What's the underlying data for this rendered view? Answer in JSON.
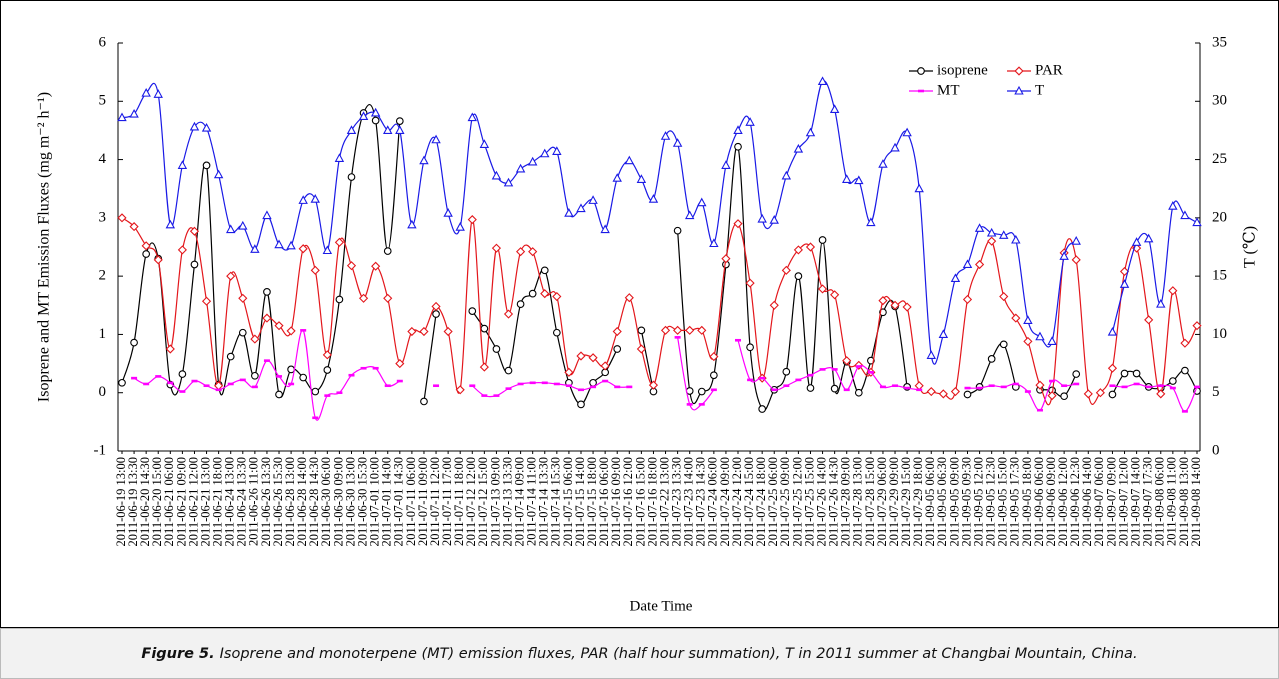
{
  "chart_data": {
    "type": "line",
    "x_label": "Date Time",
    "y_label": "Isoprene and MT Emission Fluxes (mg m⁻² h⁻¹)",
    "y2_label": "T (℃)",
    "ylim": [
      -1,
      6
    ],
    "yticks": [
      -1,
      0,
      1,
      2,
      3,
      4,
      5,
      6
    ],
    "y2lim": [
      0,
      35
    ],
    "y2ticks": [
      0,
      5,
      10,
      15,
      20,
      25,
      30,
      35
    ],
    "legend": "upper right",
    "categories": [
      "2011-06-19 13:00",
      "2011-06-19 13:30",
      "2011-06-20 14:30",
      "2011-06-20 15:00",
      "2011-06-21 06:00",
      "2011-06-21 09:00",
      "2011-06-21 12:00",
      "2011-06-21 13:00",
      "2011-06-21 18:00",
      "2011-06-24 13:00",
      "2011-06-24 13:30",
      "2011-06-26 11:00",
      "2011-06-26 13:30",
      "2011-06-26 15:30",
      "2011-06-28 13:00",
      "2011-06-28 14:00",
      "2011-06-28 14:30",
      "2011-06-30 06:00",
      "2011-06-30 09:00",
      "2011-06-30 13:00",
      "2011-06-30 15:30",
      "2011-07-01 10:00",
      "2011-07-01 14:00",
      "2011-07-01 14:30",
      "2011-07-11 06:00",
      "2011-07-11 09:00",
      "2011-07-11 12:00",
      "2011-07-11 17:00",
      "2011-07-11 18:00",
      "2011-07-12 12:00",
      "2011-07-12 15:00",
      "2011-07-13 09:00",
      "2011-07-13 13:30",
      "2011-07-14 09:00",
      "2011-07-14 11:00",
      "2011-07-14 13:30",
      "2011-07-14 15:30",
      "2011-07-15 06:00",
      "2011-07-15 14:00",
      "2011-07-15 18:00",
      "2011-07-16 06:00",
      "2011-07-16 09:00",
      "2011-07-16 12:00",
      "2011-07-16 15:00",
      "2011-07-16 18:00",
      "2011-07-22 13:00",
      "2011-07-23 13:30",
      "2011-07-23 14:00",
      "2011-07-23 14:30",
      "2011-07-24 06:00",
      "2011-07-24 09:00",
      "2011-07-24 12:00",
      "2011-07-24 15:00",
      "2011-07-24 18:00",
      "2011-07-25 06:00",
      "2011-07-25 09:00",
      "2011-07-25 12:00",
      "2011-07-25 15:00",
      "2011-07-26 14:00",
      "2011-07-26 14:30",
      "2011-07-28 09:00",
      "2011-07-28 13:00",
      "2011-07-28 15:00",
      "2011-07-29 06:00",
      "2011-07-29 09:00",
      "2011-07-29 15:00",
      "2011-07-29 18:00",
      "2011-09-05 06:00",
      "2011-09-05 06:30",
      "2011-09-05 09:00",
      "2011-09-05 09:30",
      "2011-09-05 12:00",
      "2011-09-05 12:30",
      "2011-09-05 15:00",
      "2011-09-05 17:30",
      "2011-09-05 18:00",
      "2011-09-06 06:00",
      "2011-09-06 09:00",
      "2011-09-06 12:00",
      "2011-09-06 12:30",
      "2011-09-06 14:00",
      "2011-09-07 06:00",
      "2011-09-07 09:00",
      "2011-09-07 12:00",
      "2011-09-07 14:00",
      "2011-09-07 17:30",
      "2011-09-08 06:00",
      "2011-09-08 11:00",
      "2011-09-08 13:00",
      "2011-09-08 14:00"
    ],
    "series": [
      {
        "name": "isoprene",
        "color": "#000000",
        "marker": "circle",
        "values": [
          0.17,
          0.86,
          2.38,
          2.3,
          0.14,
          0.32,
          2.2,
          3.9,
          0.14,
          0.62,
          1.03,
          0.29,
          1.73,
          -0.03,
          0.4,
          0.26,
          0.02,
          0.39,
          1.6,
          3.7,
          4.8,
          4.67,
          2.43,
          4.66,
          null,
          -0.15,
          1.35,
          null,
          null,
          1.4,
          1.1,
          0.75,
          0.38,
          1.52,
          1.7,
          2.1,
          1.03,
          0.17,
          -0.2,
          0.17,
          0.35,
          0.75,
          null,
          1.07,
          0.02,
          null,
          2.78,
          0.03,
          0.02,
          0.3,
          2.2,
          4.22,
          0.78,
          -0.28,
          0.05,
          0.36,
          2.0,
          0.08,
          2.62,
          0.07,
          0.53,
          0.0,
          0.55,
          1.38,
          1.48,
          0.1,
          null,
          null,
          null,
          null,
          -0.03,
          0.1,
          0.58,
          0.83,
          0.1,
          null,
          0.05,
          0.04,
          -0.06,
          0.32,
          null,
          null,
          -0.03,
          0.33,
          0.33,
          0.1,
          0.08,
          0.2,
          0.38,
          0.03
        ]
      },
      {
        "name": "PAR",
        "color": "#e3171c",
        "marker": "diamond",
        "values": [
          3.0,
          2.85,
          2.52,
          2.28,
          0.75,
          2.45,
          2.77,
          1.57,
          0.12,
          2.0,
          1.62,
          0.92,
          1.28,
          1.15,
          1.06,
          2.47,
          2.1,
          0.65,
          2.58,
          2.18,
          1.62,
          2.17,
          1.62,
          0.5,
          1.05,
          1.05,
          1.48,
          1.05,
          0.05,
          2.97,
          0.44,
          2.48,
          1.35,
          2.42,
          2.42,
          1.7,
          1.65,
          0.35,
          0.63,
          0.6,
          0.46,
          1.05,
          1.63,
          0.75,
          0.13,
          1.07,
          1.07,
          1.07,
          1.07,
          0.62,
          2.3,
          2.9,
          1.88,
          0.25,
          1.5,
          2.1,
          2.45,
          2.5,
          1.78,
          1.68,
          0.55,
          0.47,
          0.35,
          1.58,
          1.5,
          1.47,
          0.12,
          0.02,
          -0.02,
          0.02,
          1.6,
          2.2,
          2.6,
          1.65,
          1.28,
          0.88,
          0.13,
          -0.05,
          2.4,
          2.28,
          -0.02,
          0.0,
          0.42,
          2.08,
          2.48,
          1.25,
          -0.02,
          1.75,
          0.85,
          1.15
        ]
      },
      {
        "name": "MT",
        "color": "#ff00ff",
        "marker": "dash",
        "values": [
          null,
          0.25,
          0.15,
          0.28,
          0.17,
          0.02,
          0.2,
          0.12,
          0.05,
          0.15,
          0.22,
          0.1,
          0.55,
          0.28,
          0.15,
          1.07,
          -0.43,
          -0.05,
          0.0,
          0.3,
          0.42,
          0.42,
          0.12,
          0.2,
          null,
          null,
          0.12,
          null,
          null,
          0.12,
          -0.05,
          -0.05,
          0.07,
          0.15,
          0.17,
          0.17,
          0.15,
          0.12,
          0.05,
          0.1,
          0.2,
          0.1,
          0.1,
          null,
          null,
          null,
          0.95,
          -0.2,
          -0.2,
          0.05,
          null,
          0.9,
          0.22,
          0.25,
          0.05,
          0.12,
          0.22,
          0.3,
          0.4,
          0.4,
          0.05,
          0.45,
          0.35,
          0.1,
          0.12,
          0.08,
          0.05,
          null,
          null,
          null,
          0.08,
          0.08,
          0.12,
          0.1,
          0.15,
          0.02,
          -0.3,
          0.2,
          0.12,
          0.15,
          null,
          null,
          0.12,
          0.1,
          0.15,
          0.1,
          0.12,
          0.08,
          -0.32,
          0.1
        ]
      },
      {
        "name": "T",
        "color": "#1a1ae6",
        "marker": "triangle",
        "axis": "y2",
        "values": [
          28.6,
          28.9,
          30.7,
          30.6,
          19.4,
          24.5,
          27.8,
          27.7,
          23.7,
          19.0,
          19.3,
          17.3,
          20.2,
          17.7,
          17.6,
          21.5,
          21.6,
          17.2,
          25.1,
          27.5,
          28.7,
          29.0,
          27.5,
          27.5,
          19.4,
          24.9,
          26.7,
          20.4,
          19.2,
          28.6,
          26.3,
          23.6,
          23.0,
          24.2,
          24.8,
          25.5,
          25.7,
          20.4,
          20.8,
          21.5,
          19.0,
          23.4,
          24.9,
          23.3,
          21.6,
          27.0,
          26.4,
          20.2,
          21.3,
          17.8,
          24.5,
          27.5,
          28.2,
          19.9,
          19.8,
          23.6,
          25.9,
          27.3,
          31.7,
          29.3,
          23.3,
          23.2,
          19.6,
          24.6,
          26.0,
          27.3,
          22.5,
          8.2,
          10.0,
          14.8,
          16.0,
          19.1,
          18.7,
          18.5,
          18.1,
          11.2,
          9.8,
          9.4,
          16.7,
          18.0,
          null,
          null,
          10.2,
          14.3,
          17.9,
          18.2,
          12.6,
          21.0,
          20.2,
          19.6
        ]
      }
    ]
  },
  "caption": {
    "label": "Figure 5.",
    "text": "Isoprene and monoterpene (MT) emission fluxes, PAR (half hour summation), T in 2011 summer at Changbai Mountain, China."
  }
}
